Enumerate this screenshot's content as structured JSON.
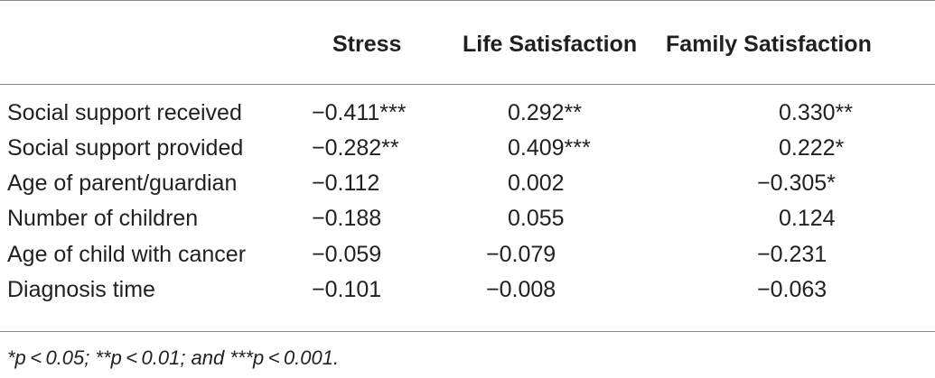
{
  "table": {
    "columns": [
      "",
      "Stress",
      "Life Satisfaction",
      "Family Satisfaction"
    ],
    "rows": [
      {
        "label": "Social support received",
        "stress": "−0.411***",
        "life": "0.292**",
        "family": "0.330**"
      },
      {
        "label": "Social support provided",
        "stress": "−0.282**",
        "life": "0.409***",
        "family": "0.222*"
      },
      {
        "label": "Age of parent/guardian",
        "stress": "−0.112",
        "life": "0.002",
        "family": "−0.305*"
      },
      {
        "label": "Number of children",
        "stress": "−0.188",
        "life": "0.055",
        "family": "0.124"
      },
      {
        "label": "Age of child with cancer",
        "stress": "−0.059",
        "life": "−0.079",
        "family": "−0.231"
      },
      {
        "label": "Diagnosis time",
        "stress": "−0.101",
        "life": "−0.008",
        "family": "−0.063"
      }
    ]
  },
  "footnote": "*p < 0.05; **p < 0.01; and ***p < 0.001."
}
